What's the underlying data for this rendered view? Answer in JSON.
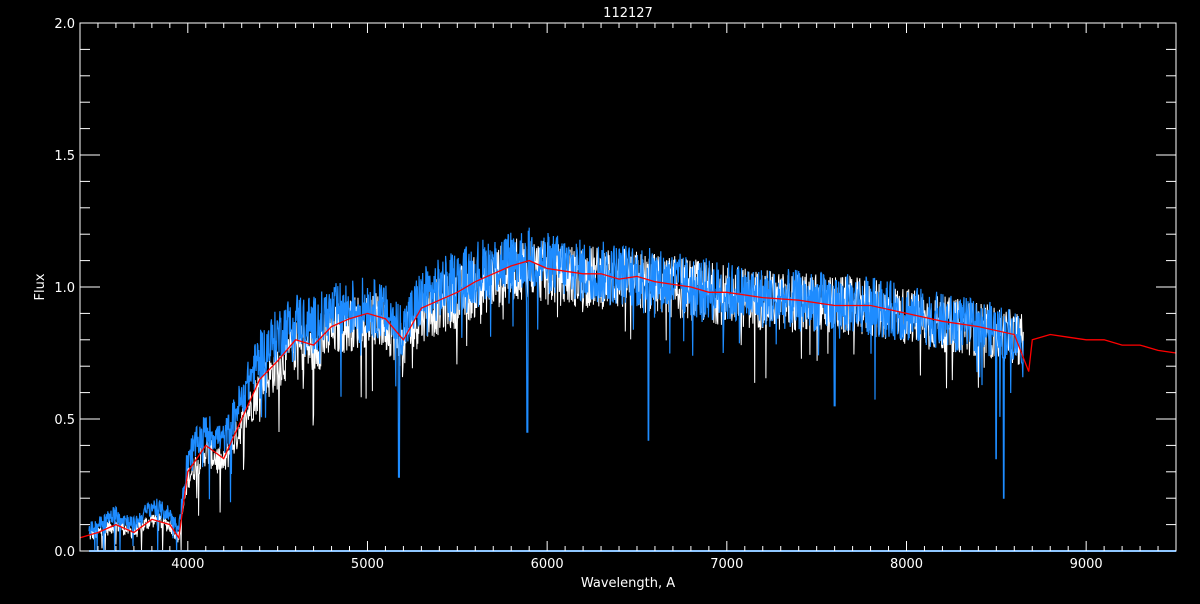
{
  "chart_data": {
    "type": "line",
    "title": "112127",
    "xlabel": "Wavelength, A",
    "ylabel": "Flux",
    "xlim": [
      3400,
      9500
    ],
    "ylim": [
      0.0,
      2.0
    ],
    "xticks": [
      4000,
      5000,
      6000,
      7000,
      8000,
      9000
    ],
    "xtick_labels": [
      "4000",
      "5000",
      "6000",
      "7000",
      "8000",
      "9000"
    ],
    "yticks": [
      0.0,
      0.5,
      1.0,
      1.5,
      2.0
    ],
    "ytick_labels": [
      "0.0",
      "0.5",
      "1.0",
      "1.5",
      "2.0"
    ],
    "grid": false,
    "background": "#000000",
    "series": [
      {
        "color": "#ffffff",
        "style": "noisy",
        "x": [
          3450,
          3500,
          3600,
          3700,
          3800,
          3900,
          3950,
          4000,
          4100,
          4200,
          4300,
          4400,
          4500,
          4600,
          4700,
          4800,
          4900,
          5000,
          5100,
          5200,
          5300,
          5400,
          5500,
          5600,
          5700,
          5800,
          5900,
          6000,
          6200,
          6400,
          6600,
          6800,
          7000,
          7200,
          7400,
          7600,
          7800,
          8000,
          8200,
          8400,
          8600,
          8650
        ],
        "y": [
          0.06,
          0.07,
          0.1,
          0.07,
          0.12,
          0.1,
          0.05,
          0.28,
          0.38,
          0.33,
          0.48,
          0.62,
          0.7,
          0.78,
          0.76,
          0.83,
          0.86,
          0.88,
          0.86,
          0.78,
          0.9,
          0.93,
          0.96,
          1.0,
          1.03,
          1.06,
          1.08,
          1.05,
          1.04,
          1.03,
          1.01,
          0.99,
          0.97,
          0.95,
          0.94,
          0.93,
          0.92,
          0.89,
          0.86,
          0.84,
          0.81,
          0.8
        ]
      },
      {
        "color": "#1e8cff",
        "style": "noisy",
        "x": [
          3450,
          3500,
          3600,
          3700,
          3800,
          3900,
          3950,
          4000,
          4100,
          4200,
          4300,
          4400,
          4500,
          4600,
          4700,
          4800,
          4900,
          5000,
          5100,
          5200,
          5300,
          5400,
          5500,
          5600,
          5700,
          5800,
          5900,
          6000,
          6200,
          6400,
          6600,
          6800,
          7000,
          7200,
          7400,
          7600,
          7800,
          8000,
          8200,
          8400,
          8600,
          8650
        ],
        "y": [
          0.08,
          0.1,
          0.14,
          0.1,
          0.17,
          0.14,
          0.08,
          0.36,
          0.46,
          0.42,
          0.58,
          0.74,
          0.82,
          0.88,
          0.86,
          0.9,
          0.92,
          0.93,
          0.9,
          0.84,
          0.96,
          0.99,
          1.02,
          1.06,
          1.08,
          1.1,
          1.11,
          1.09,
          1.06,
          1.05,
          1.03,
          1.0,
          0.98,
          0.96,
          0.95,
          0.94,
          0.93,
          0.9,
          0.87,
          0.85,
          0.82,
          0.8
        ],
        "absorption_lines": [
          [
            5175,
            0.28
          ],
          [
            5890,
            0.45
          ],
          [
            6563,
            0.42
          ],
          [
            7600,
            0.55
          ],
          [
            8498,
            0.35
          ],
          [
            8542,
            0.2
          ],
          [
            8662,
            0.7
          ]
        ]
      },
      {
        "color": "#1e8cff",
        "style": "flat",
        "x": [
          3450,
          9500
        ],
        "y": [
          0.0,
          0.0
        ]
      },
      {
        "color": "#ff0000",
        "style": "smooth",
        "x": [
          3400,
          3500,
          3600,
          3700,
          3800,
          3900,
          3950,
          4000,
          4100,
          4200,
          4300,
          4400,
          4500,
          4600,
          4700,
          4800,
          4900,
          5000,
          5100,
          5200,
          5300,
          5400,
          5500,
          5600,
          5700,
          5800,
          5900,
          6000,
          6100,
          6200,
          6300,
          6400,
          6500,
          6600,
          6700,
          6800,
          6900,
          7000,
          7200,
          7400,
          7600,
          7800,
          8000,
          8200,
          8400,
          8600,
          8680,
          8700,
          8800,
          8900,
          9000,
          9100,
          9200,
          9300,
          9400,
          9500
        ],
        "y": [
          0.05,
          0.07,
          0.1,
          0.07,
          0.12,
          0.1,
          0.05,
          0.3,
          0.4,
          0.35,
          0.5,
          0.65,
          0.72,
          0.8,
          0.78,
          0.85,
          0.88,
          0.9,
          0.88,
          0.8,
          0.92,
          0.95,
          0.98,
          1.02,
          1.05,
          1.08,
          1.1,
          1.07,
          1.06,
          1.05,
          1.05,
          1.03,
          1.04,
          1.02,
          1.01,
          1.0,
          0.98,
          0.98,
          0.96,
          0.95,
          0.93,
          0.93,
          0.9,
          0.87,
          0.85,
          0.82,
          0.68,
          0.8,
          0.82,
          0.81,
          0.8,
          0.8,
          0.78,
          0.78,
          0.76,
          0.75
        ]
      }
    ]
  }
}
